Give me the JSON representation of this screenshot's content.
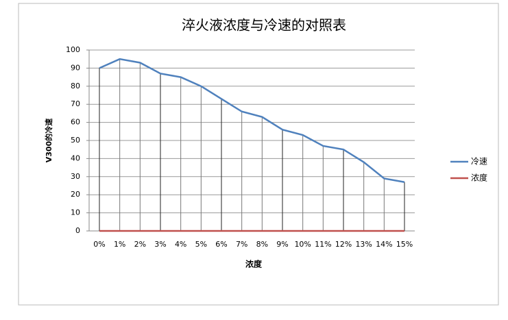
{
  "chart_data": {
    "type": "line",
    "title": "淬火液浓度与冷速的对照表",
    "x_label": "浓度",
    "y_label": "V300的冷速",
    "categories": [
      "0%",
      "1%",
      "2%",
      "3%",
      "4%",
      "5%",
      "6%",
      "7%",
      "8%",
      "9%",
      "10%",
      "11%",
      "12%",
      "13%",
      "14%",
      "15%"
    ],
    "series": [
      {
        "name": "冷速",
        "color": "#4f81bd",
        "values": [
          90,
          95,
          93,
          87,
          85,
          80,
          73,
          66,
          63,
          56,
          53,
          47,
          45,
          38,
          29,
          27
        ]
      },
      {
        "name": "浓度",
        "color": "#c0504d",
        "values": [
          0,
          0,
          0,
          0,
          0,
          0,
          0,
          0,
          0,
          0,
          0,
          0,
          0,
          0,
          0,
          0
        ]
      }
    ],
    "ylim": [
      0,
      100
    ],
    "yticks": [
      0,
      10,
      20,
      30,
      40,
      50,
      60,
      70,
      80,
      90,
      100
    ],
    "grid": true,
    "drop_lines": true,
    "legend": "right"
  }
}
